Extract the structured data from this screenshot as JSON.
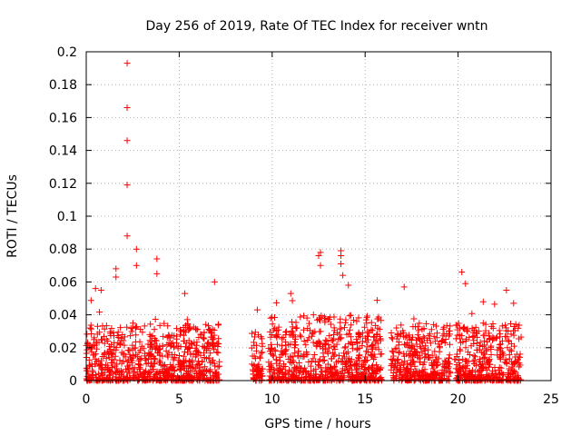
{
  "chart_data": {
    "type": "scatter",
    "title": "Day 256 of 2019, Rate Of TEC Index for receiver wntn",
    "xlabel": "GPS time / hours",
    "ylabel": "ROTI / TECUs",
    "xlim": [
      0,
      25
    ],
    "ylim": [
      0,
      0.2
    ],
    "x_ticks": [
      0,
      5,
      10,
      15,
      20,
      25
    ],
    "y_ticks": [
      0,
      0.02,
      0.04,
      0.06,
      0.08,
      0.1,
      0.12,
      0.14,
      0.16,
      0.18,
      0.2
    ],
    "x_tick_labels": [
      "0",
      "5",
      "10",
      "15",
      "20",
      "25"
    ],
    "y_tick_labels": [
      "0",
      "0.02",
      "0.04",
      "0.06",
      "0.08",
      "0.1",
      "0.12",
      "0.14",
      "0.16",
      "0.18",
      "0.2"
    ],
    "grid": true,
    "marker": "+",
    "marker_color": "#ff0000",
    "series": [
      {
        "name": "ROTI",
        "segments": [
          {
            "x_start": 0.0,
            "x_end": 7.2,
            "typical_max": 0.035
          },
          {
            "x_start": 8.9,
            "x_end": 9.5,
            "typical_max": 0.03
          },
          {
            "x_start": 9.8,
            "x_end": 15.9,
            "typical_max": 0.04
          },
          {
            "x_start": 16.4,
            "x_end": 19.6,
            "typical_max": 0.035
          },
          {
            "x_start": 19.8,
            "x_end": 23.4,
            "typical_max": 0.035
          }
        ],
        "notable_points": [
          {
            "x": 2.2,
            "y": 0.193
          },
          {
            "x": 2.2,
            "y": 0.166
          },
          {
            "x": 2.2,
            "y": 0.146
          },
          {
            "x": 2.2,
            "y": 0.119
          },
          {
            "x": 2.2,
            "y": 0.088
          },
          {
            "x": 2.7,
            "y": 0.08
          },
          {
            "x": 2.7,
            "y": 0.07
          },
          {
            "x": 1.6,
            "y": 0.068
          },
          {
            "x": 1.6,
            "y": 0.063
          },
          {
            "x": 3.8,
            "y": 0.074
          },
          {
            "x": 3.8,
            "y": 0.065
          },
          {
            "x": 6.9,
            "y": 0.06
          },
          {
            "x": 12.6,
            "y": 0.078
          },
          {
            "x": 12.5,
            "y": 0.076
          },
          {
            "x": 12.6,
            "y": 0.07
          },
          {
            "x": 13.7,
            "y": 0.079
          },
          {
            "x": 13.7,
            "y": 0.076
          },
          {
            "x": 13.7,
            "y": 0.071
          },
          {
            "x": 13.8,
            "y": 0.064
          },
          {
            "x": 14.1,
            "y": 0.058
          },
          {
            "x": 11.0,
            "y": 0.053
          },
          {
            "x": 20.2,
            "y": 0.066
          },
          {
            "x": 20.4,
            "y": 0.059
          },
          {
            "x": 22.6,
            "y": 0.055
          },
          {
            "x": 17.1,
            "y": 0.057
          },
          {
            "x": 0.5,
            "y": 0.056
          },
          {
            "x": 0.8,
            "y": 0.055
          },
          {
            "x": 5.3,
            "y": 0.053
          },
          {
            "x": 9.2,
            "y": 0.043
          }
        ]
      }
    ]
  }
}
